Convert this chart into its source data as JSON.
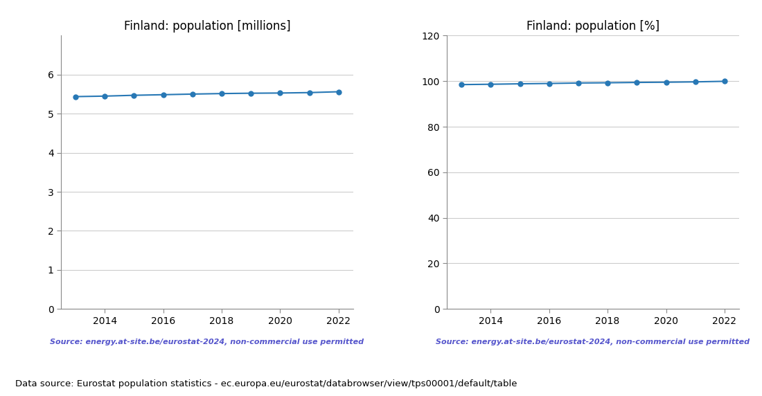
{
  "years": [
    2013,
    2014,
    2015,
    2016,
    2017,
    2018,
    2019,
    2020,
    2021,
    2022
  ],
  "population_millions": [
    5.438,
    5.451,
    5.472,
    5.487,
    5.503,
    5.516,
    5.525,
    5.53,
    5.541,
    5.563
  ],
  "population_percent": [
    98.5,
    98.65,
    98.85,
    99.0,
    99.2,
    99.3,
    99.45,
    99.55,
    99.7,
    99.95
  ],
  "title_millions": "Finland: population [millions]",
  "title_percent": "Finland: population [%]",
  "ylim_millions": [
    0,
    7
  ],
  "ylim_percent": [
    0,
    120
  ],
  "yticks_millions": [
    0,
    1,
    2,
    3,
    4,
    5,
    6
  ],
  "yticks_percent": [
    0,
    20,
    40,
    60,
    80,
    100,
    120
  ],
  "line_color": "#2878b5",
  "marker": "o",
  "marker_size": 6,
  "source_text": "Source: energy.at-site.be/eurostat-2024, non-commercial use permitted",
  "source_color": "#5555cc",
  "bottom_text": "Data source: Eurostat population statistics - ec.europa.eu/eurostat/databrowser/view/tps00001/default/table",
  "grid_color": "#cccccc",
  "background_color": "#ffffff",
  "xlim": [
    2012.5,
    2022.5
  ],
  "xticks": [
    2014,
    2016,
    2018,
    2020,
    2022
  ]
}
